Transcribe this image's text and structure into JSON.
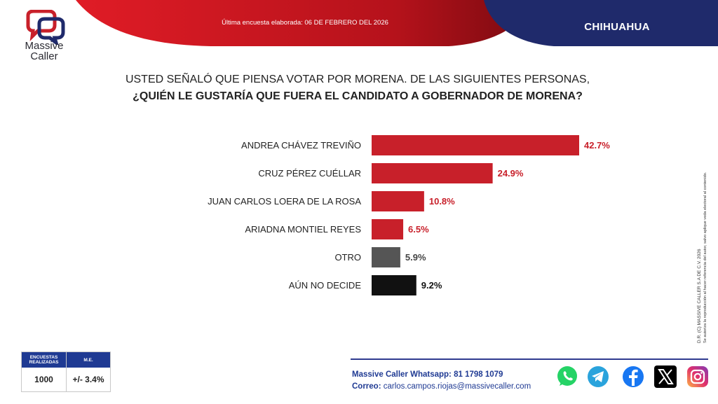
{
  "header": {
    "brand_line1": "Massive",
    "brand_line2": "Caller",
    "survey_date": "Última encuesta elaborada: 06 DE FEBRERO DEL 2026",
    "state": "CHIHUAHUA",
    "colors": {
      "red": "#b5121b",
      "navy": "#1f2a6b"
    }
  },
  "question": {
    "line1": "USTED SEÑALÓ QUE PIENSA VOTAR POR MORENA. DE LAS SIGUIENTES PERSONAS,",
    "line2": "¿QUIÉN LE GUSTARÍA QUE FUERA EL CANDIDATO A GOBERNADOR DE MORENA?"
  },
  "chart_data": {
    "type": "bar",
    "orientation": "horizontal",
    "categories": [
      "ANDREA CHÁVEZ TREVIÑO",
      "CRUZ PÉREZ CUÉLLAR",
      "JUAN CARLOS LOERA DE LA ROSA",
      "ARIADNA MONTIEL REYES",
      "OTRO",
      "AÚN NO DECIDE"
    ],
    "values": [
      42.7,
      24.9,
      10.8,
      6.5,
      5.9,
      9.2
    ],
    "value_labels": [
      "42.7%",
      "24.9%",
      "10.8%",
      "6.5%",
      "5.9%",
      "9.2%"
    ],
    "colors": [
      "#c8202a",
      "#c8202a",
      "#c8202a",
      "#c8202a",
      "#555555",
      "#111111"
    ],
    "label_colors": [
      "#c8202a",
      "#c8202a",
      "#c8202a",
      "#c8202a",
      "#444444",
      "#111111"
    ],
    "xlim": [
      0,
      45
    ],
    "grid": false,
    "legend": "none"
  },
  "side_note": {
    "line1": "D.R. (C) MASSIVE CALLER S.A DE C.V. 2026",
    "line2": "Se autoriza la reproducción al hacer referencia del autor, salvo aplique veda electoral al contenido."
  },
  "stats": {
    "h1": "ENCUESTAS REALIZADAS",
    "h2": "M.E.",
    "v1": "1000",
    "v2": "+/- 3.4%"
  },
  "contact": {
    "whatsapp_key": "Massive Caller Whatsapp:",
    "whatsapp_val": " 81 1798 1079",
    "email_key": "Correo:",
    "email_val": " carlos.campos.riojas@massivecaller.com"
  },
  "social": [
    "whatsapp-icon",
    "telegram-icon",
    "facebook-icon",
    "x-icon",
    "instagram-icon"
  ]
}
